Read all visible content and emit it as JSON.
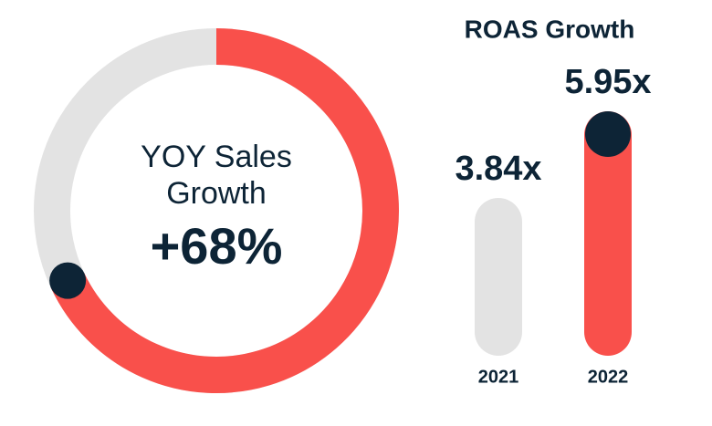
{
  "chart_data": [
    {
      "type": "donut",
      "title": "YOY Sales Growth",
      "values": [
        68
      ],
      "value_labels": [
        "+68%"
      ],
      "color": "#f9504b",
      "track_color": "#e3e3e3"
    },
    {
      "type": "bar",
      "title": "ROAS Growth",
      "categories": [
        "2021",
        "2022"
      ],
      "values": [
        3.84,
        5.95
      ],
      "value_labels": [
        "3.84x",
        "5.95x"
      ],
      "colors": [
        "#e3e3e3",
        "#f9504b"
      ]
    }
  ]
}
